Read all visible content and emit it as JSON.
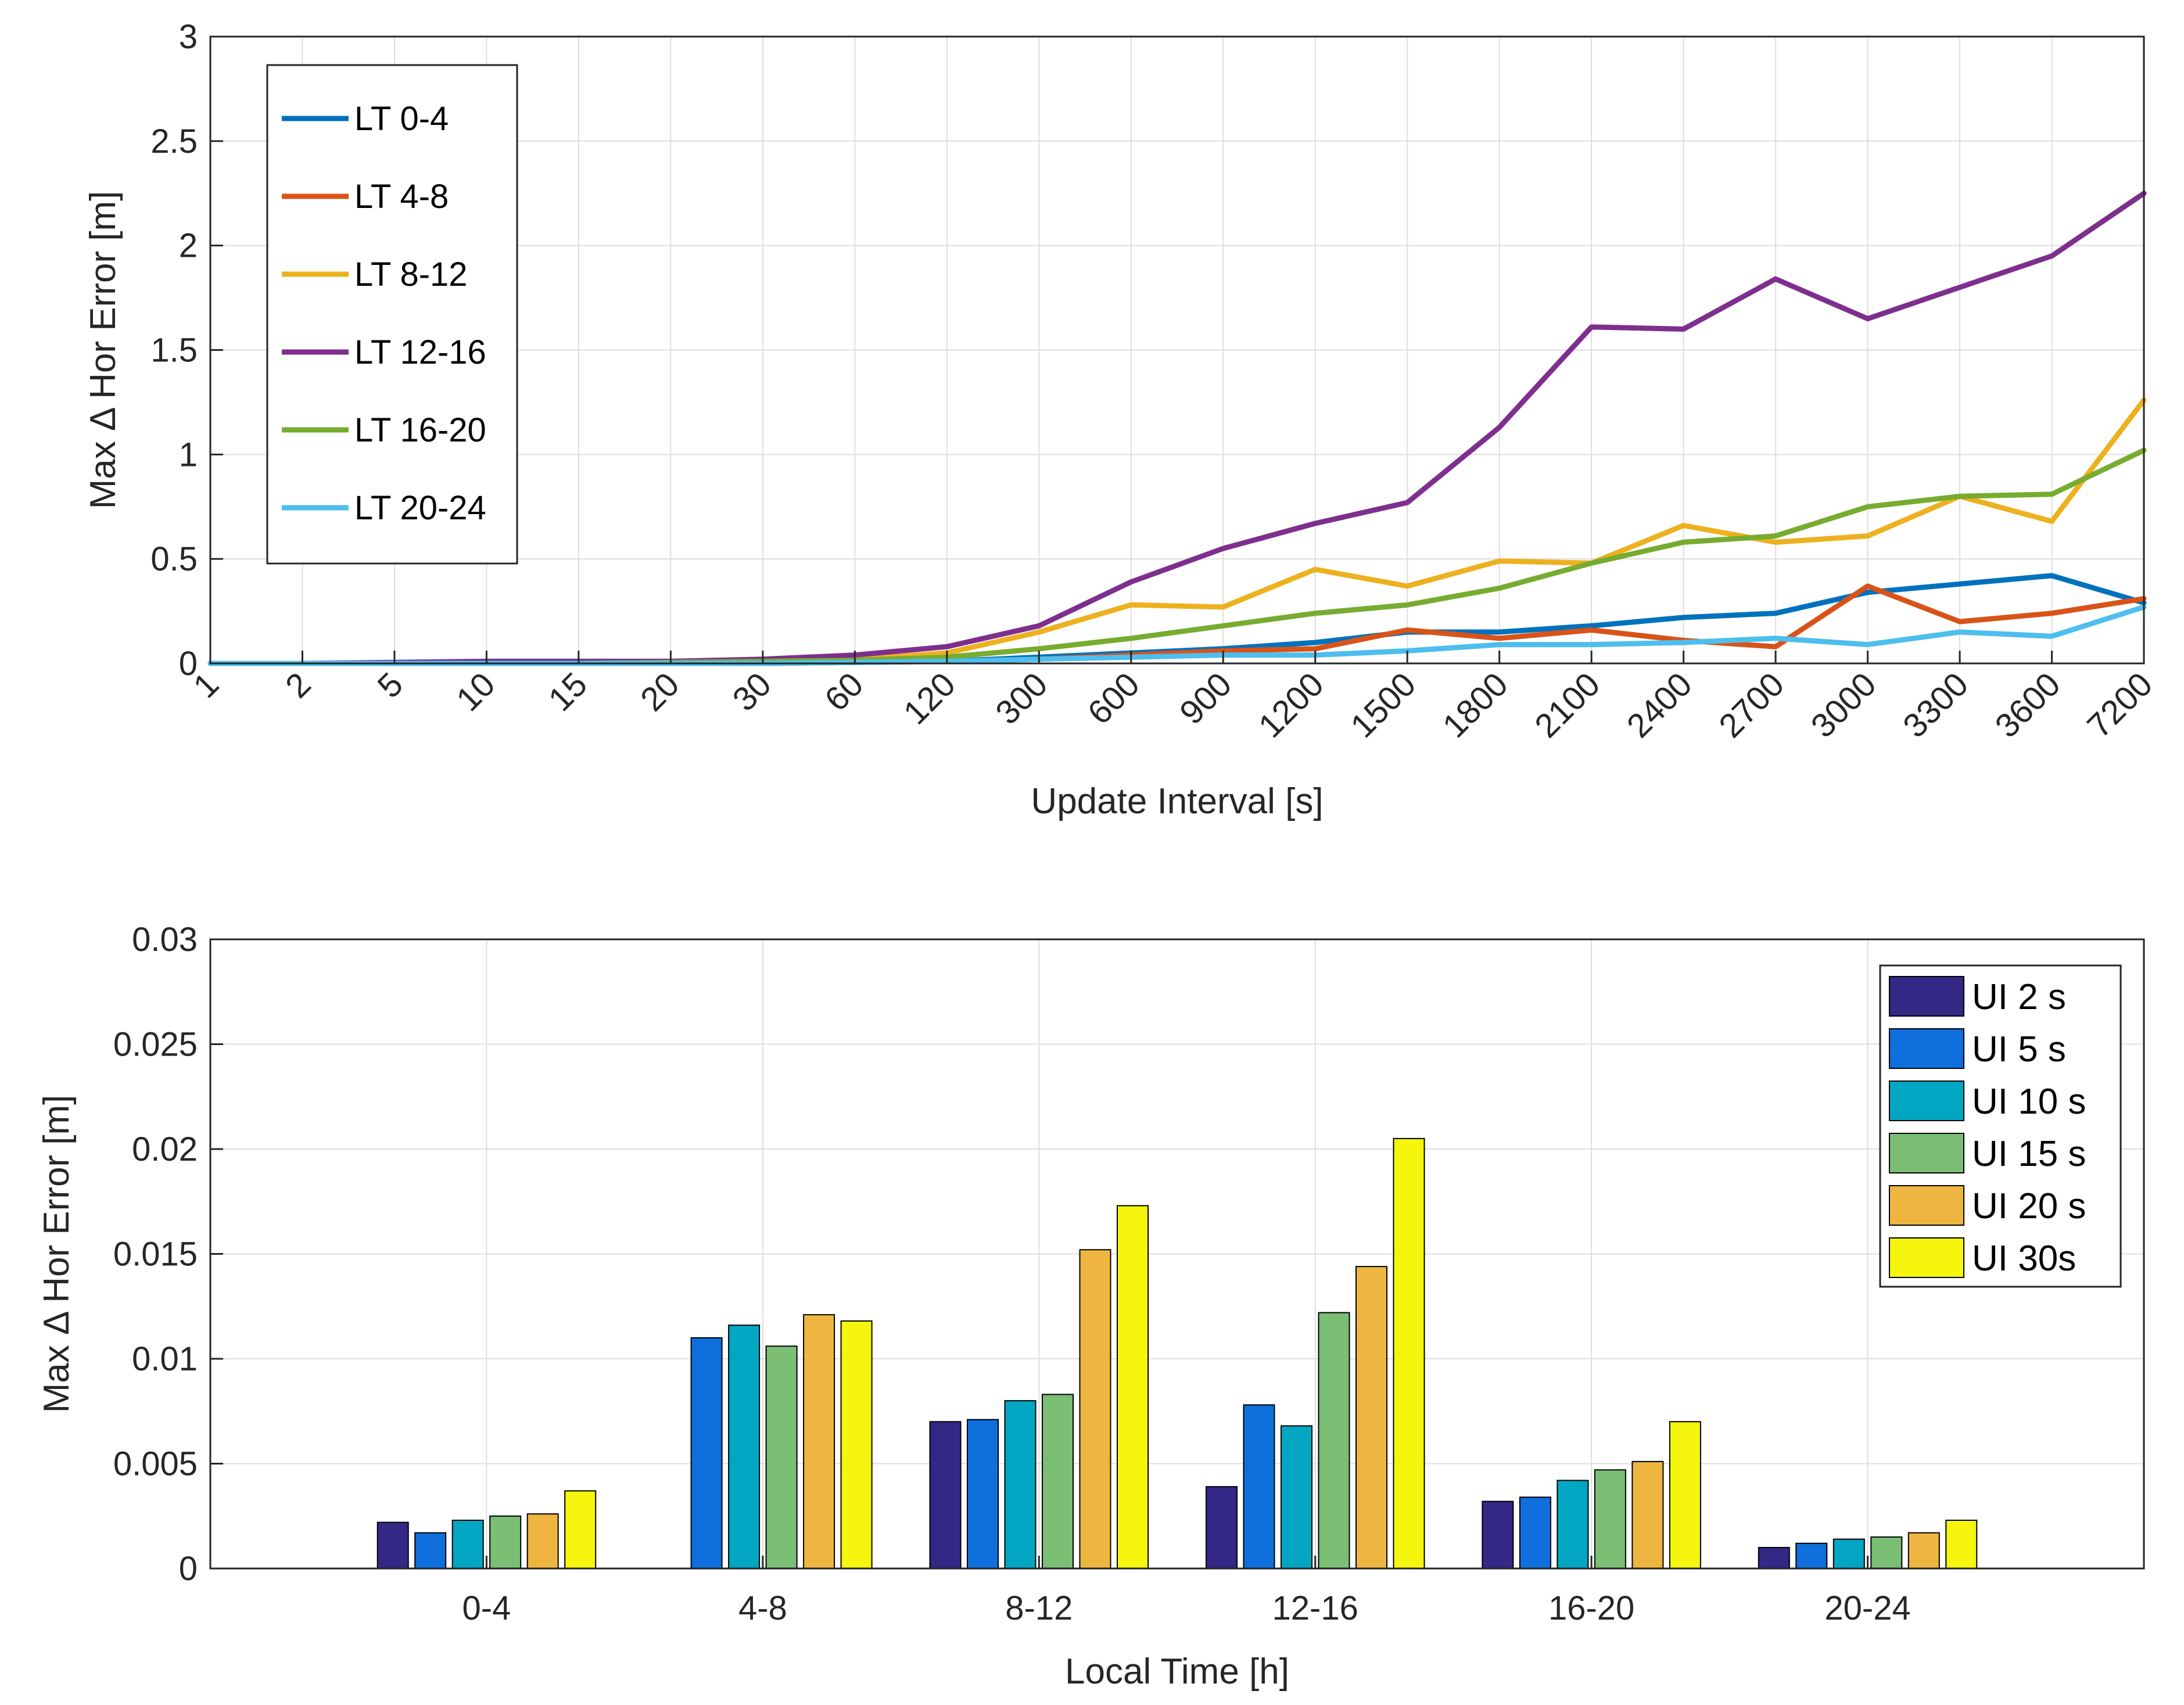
{
  "chart_data": [
    {
      "type": "line",
      "xlabel": "Update Interval [s]",
      "ylabel": "Max Δ Hor Error [m]",
      "ylim": [
        0,
        3
      ],
      "yticks": [
        "0",
        "0.5",
        "1",
        "1.5",
        "2",
        "2.5",
        "3"
      ],
      "yticks_values": [
        0,
        0.5,
        1,
        1.5,
        2,
        2.5,
        3
      ],
      "categories": [
        "1",
        "2",
        "5",
        "10",
        "15",
        "20",
        "30",
        "60",
        "120",
        "300",
        "600",
        "900",
        "1200",
        "1500",
        "1800",
        "2100",
        "2400",
        "2700",
        "3000",
        "3300",
        "3600",
        "7200"
      ],
      "grid": true,
      "legend_position": "top-left",
      "series": [
        {
          "name": "LT 0-4",
          "color": "#0072BD",
          "values": [
            0,
            0,
            0,
            0,
            0,
            0,
            0,
            0.005,
            0.01,
            0.03,
            0.05,
            0.07,
            0.1,
            0.15,
            0.15,
            0.18,
            0.22,
            0.24,
            0.34,
            0.38,
            0.42,
            0.29
          ]
        },
        {
          "name": "LT 4-8",
          "color": "#D95319",
          "values": [
            0,
            0,
            0,
            0,
            0,
            0,
            0,
            0.005,
            0.01,
            0.02,
            0.04,
            0.06,
            0.07,
            0.16,
            0.12,
            0.16,
            0.11,
            0.08,
            0.37,
            0.2,
            0.24,
            0.31
          ]
        },
        {
          "name": "LT 8-12",
          "color": "#EDB120",
          "values": [
            0,
            0,
            0,
            0,
            0.003,
            0.005,
            0.01,
            0.02,
            0.05,
            0.15,
            0.28,
            0.27,
            0.45,
            0.37,
            0.49,
            0.48,
            0.66,
            0.58,
            0.61,
            0.8,
            0.68,
            1.26
          ]
        },
        {
          "name": "LT 12-16",
          "color": "#7E2F8E",
          "values": [
            0,
            0,
            0.005,
            0.01,
            0.01,
            0.01,
            0.02,
            0.04,
            0.08,
            0.18,
            0.39,
            0.55,
            0.67,
            0.77,
            1.13,
            1.61,
            1.6,
            1.84,
            1.65,
            1.8,
            1.95,
            2.25
          ]
        },
        {
          "name": "LT 16-20",
          "color": "#77AC30",
          "values": [
            0,
            0,
            0,
            0,
            0,
            0.005,
            0.01,
            0.015,
            0.03,
            0.07,
            0.12,
            0.18,
            0.24,
            0.28,
            0.36,
            0.48,
            0.58,
            0.61,
            0.75,
            0.8,
            0.81,
            1.02
          ]
        },
        {
          "name": "LT 20-24",
          "color": "#4DBEEE",
          "values": [
            0,
            0,
            0,
            0,
            0,
            0,
            0,
            0.005,
            0.01,
            0.02,
            0.03,
            0.04,
            0.04,
            0.06,
            0.09,
            0.09,
            0.1,
            0.12,
            0.09,
            0.15,
            0.13,
            0.27
          ]
        }
      ]
    },
    {
      "type": "bar",
      "xlabel": "Local Time [h]",
      "ylabel": "Max Δ Hor Error [m]",
      "ylim": [
        0,
        0.03
      ],
      "yticks": [
        "0",
        "0.005",
        "0.01",
        "0.015",
        "0.02",
        "0.025",
        "0.03"
      ],
      "yticks_values": [
        0,
        0.005,
        0.01,
        0.015,
        0.02,
        0.025,
        0.03
      ],
      "categories": [
        "0-4",
        "4-8",
        "8-12",
        "12-16",
        "16-20",
        "20-24"
      ],
      "xlim": [
        0,
        7
      ],
      "grid": true,
      "legend_position": "top-right",
      "series": [
        {
          "name": "UI 2 s",
          "color": "#332886",
          "values": [
            0.0022,
            0.0,
            0.007,
            0.0039,
            0.0032,
            0.001
          ]
        },
        {
          "name": "UI 5 s",
          "color": "#0F6FDC",
          "values": [
            0.0017,
            0.011,
            0.0071,
            0.0078,
            0.0034,
            0.0012
          ]
        },
        {
          "name": "UI 10 s",
          "color": "#03A6C2",
          "values": [
            0.0023,
            0.0116,
            0.008,
            0.0068,
            0.0042,
            0.0014
          ]
        },
        {
          "name": "UI 15 s",
          "color": "#7BBF74",
          "values": [
            0.0025,
            0.0106,
            0.0083,
            0.0122,
            0.0047,
            0.0015
          ]
        },
        {
          "name": "UI 20 s",
          "color": "#EEB640",
          "values": [
            0.0026,
            0.0121,
            0.0152,
            0.0144,
            0.0051,
            0.0017
          ]
        },
        {
          "name": "UI 30s",
          "color": "#F5F50E",
          "values": [
            0.0037,
            0.0118,
            0.0173,
            0.0205,
            0.007,
            0.0023
          ]
        }
      ]
    }
  ]
}
